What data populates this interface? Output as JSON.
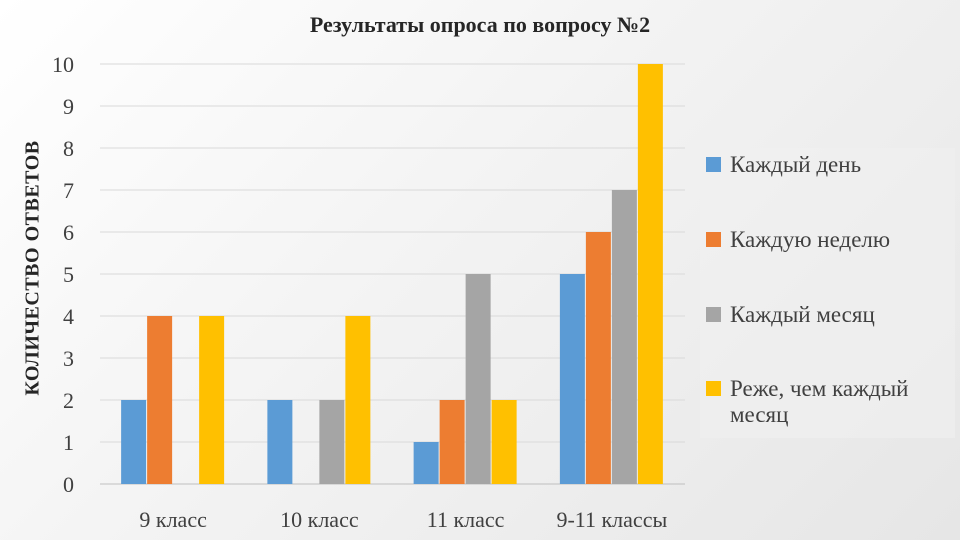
{
  "chart_data": {
    "type": "bar",
    "title": "Результаты опроса по вопросу №2",
    "ylabel": "КОЛИЧЕСТВО ОТВЕТОВ",
    "xlabel": "",
    "ylim": [
      0,
      10
    ],
    "yticks": [
      "0",
      "1",
      "2",
      "3",
      "4",
      "5",
      "6",
      "7",
      "8",
      "9",
      "10"
    ],
    "categories": [
      "9 класс",
      "10 класс",
      "11 класс",
      "9-11 классы"
    ],
    "series": [
      {
        "name": "Каждый день",
        "color": "#5b9bd5",
        "values": [
          2,
          2,
          1,
          5
        ]
      },
      {
        "name": "Каждую неделю",
        "color": "#ed7d31",
        "values": [
          4,
          0,
          2,
          6
        ]
      },
      {
        "name": "Каждый месяц",
        "color": "#a5a5a5",
        "values": [
          0,
          2,
          5,
          7
        ]
      },
      {
        "name": "Реже, чем каждый месяц",
        "color": "#ffc000",
        "values": [
          4,
          4,
          2,
          10
        ]
      }
    ],
    "grid": true,
    "legend_position": "right"
  }
}
